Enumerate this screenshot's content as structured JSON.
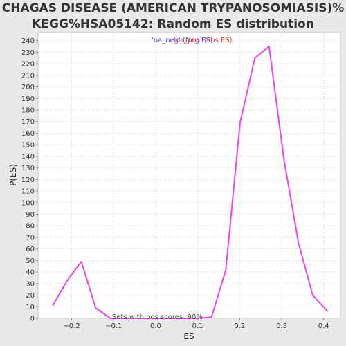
{
  "chart_data": {
    "type": "line",
    "title_line1": "CHAGAS DISEASE (AMERICAN TRYPANOSOMIASIS)%",
    "title_line2": "KEGG%HSA05142: Random ES distribution",
    "xlabel": "ES",
    "ylabel": "P(ES)",
    "xlim": [
      -0.28,
      0.44
    ],
    "ylim": [
      0,
      247
    ],
    "x_ticks": [
      -0.2,
      -0.1,
      0.0,
      0.1,
      0.2,
      0.3,
      0.4
    ],
    "x_tick_labels": [
      "−0.2",
      "−0.1",
      "0.0",
      "0.1",
      "0.2",
      "0.3",
      "0.4"
    ],
    "y_ticks": [
      0,
      10,
      20,
      30,
      40,
      50,
      60,
      70,
      80,
      90,
      100,
      110,
      120,
      130,
      140,
      150,
      160,
      170,
      180,
      190,
      200,
      210,
      220,
      230,
      240
    ],
    "grid": true,
    "legend": {
      "placement": "top-center",
      "entries": [
        {
          "label": "'na_neg' (Neg ES)",
          "color": "#4d4dd4"
        },
        {
          "label": "'na_pos' (Pos ES)",
          "color": "#e0403f"
        }
      ]
    },
    "annotation": "Sets with pos scores: 90%",
    "series": [
      {
        "color": "#ee44ee",
        "x": [
          -0.245,
          -0.21,
          -0.177,
          -0.143,
          -0.108,
          -0.075,
          -0.04,
          -0.006,
          0.028,
          0.063,
          0.098,
          0.133,
          0.167,
          0.201,
          0.236,
          0.27,
          0.305,
          0.34,
          0.374,
          0.409
        ],
        "y": [
          11,
          33,
          49,
          9,
          0,
          0,
          0,
          0,
          0,
          0,
          0,
          1,
          42,
          169,
          225,
          235,
          138,
          65,
          20,
          6
        ]
      }
    ]
  }
}
